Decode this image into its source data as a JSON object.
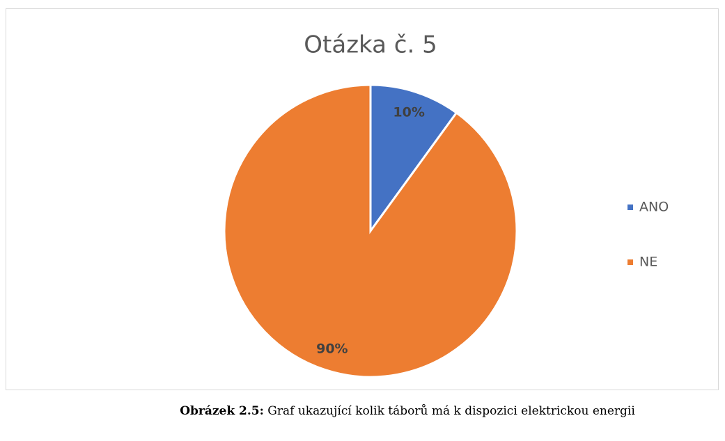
{
  "chart_data": {
    "type": "pie",
    "title": "Otázka č. 5",
    "categories": [
      "ANO",
      "NE"
    ],
    "values": [
      10,
      90
    ],
    "value_labels": [
      "10%",
      "90%"
    ],
    "colors": [
      "#4472c4",
      "#ed7d31"
    ],
    "legend": "right"
  },
  "caption": {
    "label": "Obrázek 2.5:",
    "text": "Graf ukazující kolik táborů má k dispozici elektrickou energii"
  }
}
